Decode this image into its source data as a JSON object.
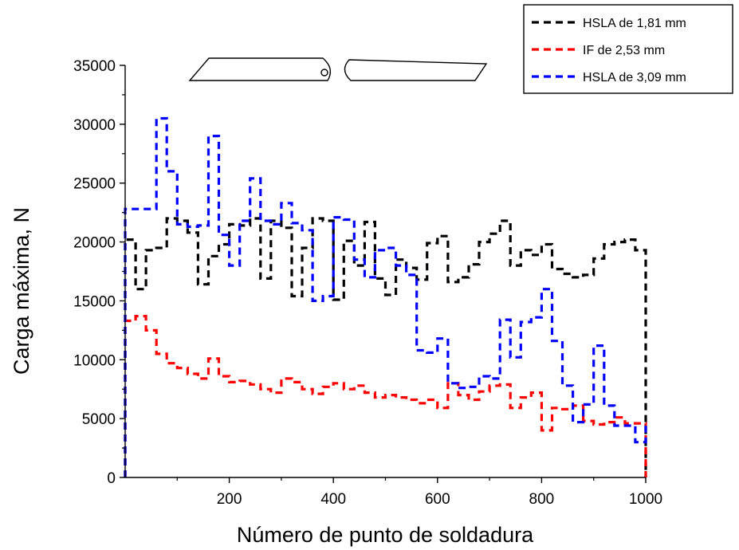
{
  "chart_data": {
    "type": "line",
    "xlabel": "Número de punto de soldadura",
    "ylabel": "Carga máxima, N",
    "xlim": [
      0,
      1000
    ],
    "ylim": [
      0,
      35000
    ],
    "xticks": [
      200,
      400,
      600,
      800,
      1000
    ],
    "yticks": [
      0,
      5000,
      10000,
      15000,
      20000,
      25000,
      30000,
      35000
    ],
    "xtick_labels": [
      "200",
      "400",
      "600",
      "800",
      "1000"
    ],
    "ytick_labels": [
      "0",
      "5000",
      "10000",
      "15000",
      "20000",
      "25000",
      "30000",
      "35000"
    ],
    "grid": false,
    "legend_position": "top-right",
    "line_style": "dashed step",
    "series": [
      {
        "name": "HSLA de 1,81 mm",
        "color": "#000000",
        "x": [
          0,
          20,
          40,
          60,
          80,
          100,
          120,
          140,
          160,
          180,
          200,
          220,
          240,
          260,
          280,
          300,
          320,
          340,
          360,
          380,
          400,
          420,
          440,
          460,
          480,
          500,
          520,
          540,
          560,
          580,
          600,
          620,
          640,
          660,
          680,
          700,
          720,
          740,
          760,
          780,
          800,
          820,
          840,
          860,
          880,
          900,
          920,
          940,
          960,
          980,
          1000
        ],
        "y": [
          20200,
          16000,
          19300,
          19500,
          22000,
          21800,
          20800,
          16400,
          18800,
          19800,
          21500,
          21400,
          22000,
          16900,
          21800,
          21200,
          15400,
          19500,
          22000,
          21800,
          15100,
          20100,
          18000,
          21700,
          16900,
          15500,
          18500,
          17800,
          16800,
          19900,
          20500,
          16600,
          17000,
          18100,
          20000,
          20700,
          21800,
          18000,
          19300,
          18900,
          19800,
          17700,
          17300,
          17000,
          17200,
          18600,
          19800,
          20000,
          20200,
          19300,
          0
        ]
      },
      {
        "name": "IF de 2,53 mm",
        "color": "#ff0000",
        "x": [
          0,
          20,
          40,
          60,
          80,
          100,
          120,
          140,
          160,
          180,
          200,
          220,
          240,
          260,
          280,
          300,
          320,
          340,
          360,
          380,
          400,
          420,
          440,
          460,
          480,
          500,
          520,
          540,
          560,
          580,
          600,
          620,
          640,
          660,
          680,
          700,
          720,
          740,
          760,
          780,
          800,
          820,
          840,
          860,
          880,
          900,
          920,
          940,
          960,
          980,
          1000
        ],
        "y": [
          13300,
          13700,
          12500,
          10500,
          9700,
          9300,
          8800,
          8400,
          10100,
          8600,
          8100,
          8200,
          7900,
          7500,
          7200,
          8400,
          8100,
          7500,
          7100,
          7700,
          8000,
          7500,
          7800,
          7200,
          6800,
          7000,
          6800,
          6600,
          6300,
          6600,
          5900,
          8000,
          7000,
          6600,
          7300,
          7800,
          7900,
          5900,
          6800,
          7200,
          4000,
          5900,
          5800,
          6100,
          4800,
          4500,
          4700,
          5100,
          4600,
          4600,
          0
        ]
      },
      {
        "name": "HSLA de 3,09 mm",
        "color": "#0000ff",
        "x": [
          0,
          20,
          40,
          60,
          80,
          100,
          120,
          140,
          160,
          180,
          200,
          220,
          240,
          260,
          280,
          300,
          320,
          340,
          360,
          380,
          400,
          420,
          440,
          460,
          480,
          500,
          520,
          540,
          560,
          580,
          600,
          620,
          640,
          660,
          680,
          700,
          720,
          740,
          760,
          780,
          800,
          820,
          840,
          860,
          880,
          900,
          920,
          940,
          960,
          980,
          1000
        ],
        "y": [
          22800,
          22800,
          22800,
          30500,
          26000,
          21500,
          21300,
          21400,
          29000,
          20600,
          18000,
          21800,
          25400,
          21800,
          21500,
          23300,
          21600,
          21000,
          15000,
          15400,
          22100,
          21900,
          18500,
          17000,
          19300,
          19500,
          18000,
          17200,
          10800,
          10600,
          11800,
          8000,
          7600,
          7700,
          8600,
          8400,
          13400,
          10200,
          13200,
          13600,
          16000,
          11600,
          7800,
          4700,
          6200,
          11200,
          6100,
          4400,
          4400,
          3000,
          4400
        ]
      }
    ]
  }
}
